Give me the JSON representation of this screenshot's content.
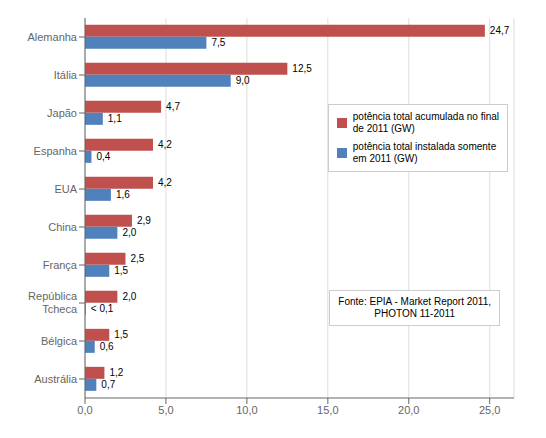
{
  "chart_data": {
    "type": "bar",
    "orientation": "horizontal",
    "categories": [
      "Alemanha",
      "Itália",
      "Japão",
      "Espanha",
      "EUA",
      "China",
      "França",
      "República\nTcheca",
      "Bélgica",
      "Austrália"
    ],
    "series": [
      {
        "name": "potência total acumulada no final\nde 2011 (GW)",
        "color": "#C0504D",
        "values": [
          24.7,
          12.5,
          4.7,
          4.2,
          4.2,
          2.9,
          2.5,
          2.0,
          1.5,
          1.2
        ],
        "value_labels": [
          "24,7",
          "12,5",
          "4,7",
          "4,2",
          "4,2",
          "2,9",
          "2,5",
          "2,0",
          "1,5",
          "1,2"
        ]
      },
      {
        "name": "potência total instalada somente\nem 2011 (GW)",
        "color": "#4F81BD",
        "values": [
          7.5,
          9.0,
          1.1,
          0.4,
          1.6,
          2.0,
          1.5,
          0.05,
          0.6,
          0.7
        ],
        "value_labels": [
          "7,5",
          "9,0",
          "1,1",
          "0,4",
          "1,6",
          "2,0",
          "1,5",
          "< 0,1",
          "0,6",
          "0,7"
        ]
      }
    ],
    "xlim": [
      0,
      26.5
    ],
    "xticks": [
      {
        "value": 0,
        "label": "0,0"
      },
      {
        "value": 5,
        "label": "5,0"
      },
      {
        "value": 10,
        "label": "10,0"
      },
      {
        "value": 15,
        "label": "15,0"
      },
      {
        "value": 20,
        "label": "20,0"
      },
      {
        "value": 25,
        "label": "25,0"
      }
    ],
    "grid": true,
    "legend": "upper right",
    "data_labels": true,
    "annotations": [
      "Fonte: EPIA - Market Report 2011,\nPHOTON 11-2011"
    ]
  }
}
